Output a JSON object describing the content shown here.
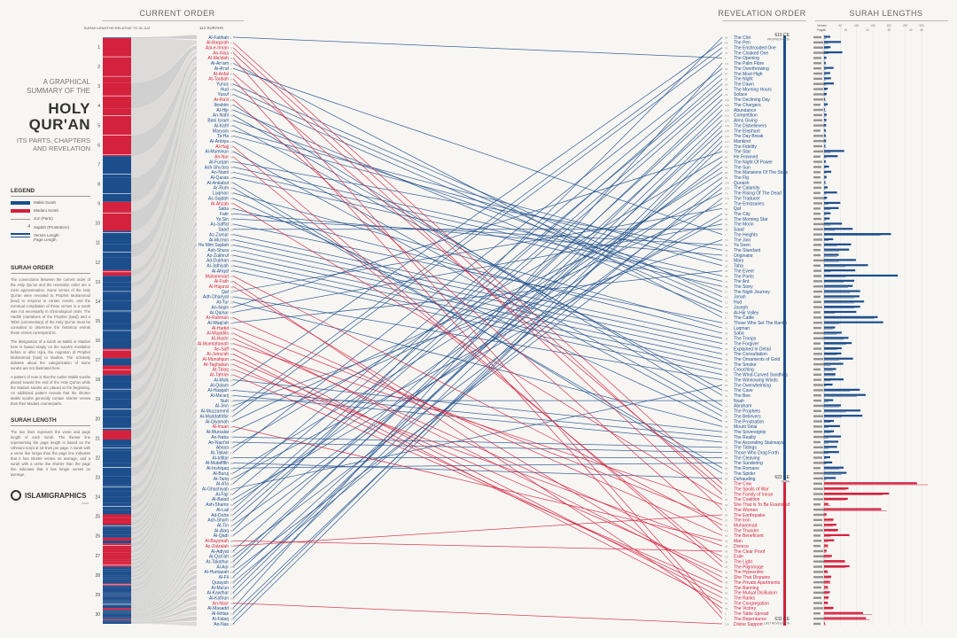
{
  "headers": {
    "current_order": "CURRENT ORDER",
    "revelation_order": "REVELATION ORDER",
    "surah_lengths": "SURAH LENGTHS",
    "bar_caption": "SURAH LENGTHS RELATIVE TO 30 JUZ",
    "surah_count": "114 SURAHS"
  },
  "title": {
    "line1": "A GRAPHICAL",
    "line2": "SUMMARY OF THE",
    "big1": "HOLY",
    "big2": "QUR'AN",
    "line3": "ITS PARTS, CHAPTERS",
    "line4": "AND REVELATION"
  },
  "legend": {
    "heading": "LEGEND",
    "items": [
      "Makki Surah",
      "Madani Surah",
      "Juz (Parts)",
      "Sajdah (Prostration)",
      "Verses Length",
      "Page Length"
    ]
  },
  "surah_order": {
    "heading": "SURAH ORDER",
    "p1": "The connections between the current order of the Holy Qur'an and the revelation order are a mere approximation. Some verses of the Holy Qur'an were revealed to Prophet Muhammad [saw] to respond to certain events, and the eventual compilation of these verses in a surah was not necessarily in chronological order. The Hadith (narratives of the Prophet [saw]) and a Tafsir (commentary) of the Holy Qur'an must be consulted to determine the historical events these verses correspond to.",
    "p2": "The designation of a surah as Makki or Madani here is based simply on the surah's revelation before or after Hijra, the migration of Prophet Muhammad [saw] to Madina. The scholarly debates about the categorization of some surahs are not illustrated here.",
    "p3": "A pattern of note is that the earlier Makki surahs placed toward the end of the Holy Qur'an while the Madani surahs are placed at the beginning. An additional pattern reveals that the shorter Makki surahs generally contain shorter verses than their Madani counterparts."
  },
  "surah_length": {
    "heading": "SURAH LENGTH",
    "p1": "The two lines represent the verse and page length of each surah. The thinner line representing the page length is based on the Uthmani script at 15 lines per page. A surah with a verse line longer than the page line indicates that it has shorter verses on average, and a surah with a verse line shorter than the page line indicates that it has longer verses on average."
  },
  "logo": {
    "name": "ISLAMIGRAPHICS",
    "sub": ".com"
  },
  "events": {
    "e1_date": "610 CE",
    "e1_label": "PROPHETHOOD",
    "e2_date": "622 CE",
    "e2_label": "HIJRA",
    "e3_date": "632 CE",
    "e3_label": "LAST REVELATION"
  },
  "length_axis": {
    "verses_label": "Verses",
    "pages_label": "Pages",
    "verse_ticks": [
      "50",
      "100",
      "150",
      "200",
      "250",
      "300"
    ],
    "page_ticks": [
      "0",
      "10",
      "20",
      "30",
      "40",
      "45"
    ]
  },
  "colors": {
    "makki": "#1d4e8c",
    "madani": "#d4213d",
    "juz_grey": "#c9c9c9",
    "bg": "#f7f6f3"
  },
  "juz_numbers": [
    "1",
    "2",
    "3",
    "4",
    "5",
    "6",
    "7",
    "8",
    "9",
    "10",
    "11",
    "12",
    "13",
    "14",
    "15",
    "16",
    "17",
    "18",
    "19",
    "20",
    "21",
    "22",
    "23",
    "24",
    "25",
    "26",
    "27",
    "28",
    "29",
    "30"
  ],
  "current_names": [
    "Al-Fatihah",
    "Al-Baqarah",
    "Aal-e-Imran",
    "An-Nisa",
    "Al-Ma'idah",
    "Al-An'am",
    "Al-A'raf",
    "Al-Anfal",
    "At-Taubah",
    "Yunus",
    "Hud",
    "Yusuf",
    "Ar-Ra'd",
    "Ibrahim",
    "Al-Hijr",
    "An-Nahl",
    "Bani Israel",
    "Al-Kahf",
    "Maryam",
    "Ta Ha",
    "Al-Anbiya",
    "Al-Hajj",
    "Al-Muminun",
    "An-Nur",
    "Al-Furqan",
    "Ash-Shu'ara",
    "An-Naml",
    "Al-Qasas",
    "Al-Ankabut",
    "Ar-Rum",
    "Luqman",
    "As-Sajdah",
    "Al-Ahzab",
    "Saba",
    "Fatir",
    "Ya Sin",
    "As-Saffat",
    "Saad",
    "Az-Zumar",
    "Al-Mu'min",
    "Ha Mim Sajdah",
    "Ash-Shura",
    "Az-Zukhruf",
    "Ad-Dukhan",
    "Al-Jathiyah",
    "Al-Ahqaf",
    "Muhammad",
    "Al-Fath",
    "Al-Hujurat",
    "Qaf",
    "Adh-Dhariyat",
    "At-Tur",
    "An-Najm",
    "Al-Qamar",
    "Ar-Rahman",
    "Al-Waqi'ah",
    "Al-Hadid",
    "Al-Mujadila",
    "Al-Hashr",
    "Al-Mumtahanah",
    "As-Saff",
    "Al-Jumu'ah",
    "Al-Munafiqun",
    "At-Taghabun",
    "At-Talaq",
    "At-Tahrim",
    "Al-Mulk",
    "Al-Qalam",
    "Al-Haqqah",
    "Al-Ma'arij",
    "Nuh",
    "Al-Jinn",
    "Al-Muzzammil",
    "Al-Muddaththir",
    "Al-Qiyamah",
    "Al-Insan",
    "Al-Mursalat",
    "An-Naba",
    "An-Nazi'at",
    "Abasa",
    "At-Takwir",
    "Al-Infitar",
    "Al-Mutaffifin",
    "Al-Inshiqaq",
    "Al-Buruj",
    "At-Tariq",
    "Al-A'la",
    "Al-Ghashiyah",
    "Al-Fajr",
    "Al-Balad",
    "Ash-Shams",
    "Al-Lail",
    "Ad-Duha",
    "Ash-Sharh",
    "At-Tin",
    "Al-Alaq",
    "Al-Qadr",
    "Al-Bayyinah",
    "Az-Zalzalah",
    "Al-Adiyat",
    "Al-Qari'ah",
    "At-Takathur",
    "Al-Asr",
    "Al-Humazah",
    "Al-Fil",
    "Quraysh",
    "Al-Ma'un",
    "Al-Kawthar",
    "Al-Kafirun",
    "An-Nasr",
    "Al-Masadd",
    "Al-Ikhlas",
    "Al-Falaq",
    "An-Nas"
  ],
  "current_madani": [
    2,
    3,
    4,
    5,
    8,
    9,
    13,
    22,
    24,
    33,
    47,
    48,
    49,
    55,
    57,
    58,
    59,
    60,
    61,
    62,
    63,
    64,
    65,
    66,
    76,
    98,
    99,
    110
  ],
  "revelation_names": [
    "The Clot",
    "The Pen",
    "The Enshrouded One",
    "The Cloaked One",
    "The Opening",
    "The Palm Fibre",
    "The Overthrowing",
    "The Most High",
    "The Night",
    "The Dawn",
    "The Morning Hours",
    "Solace",
    "The Declining Day",
    "The Chargers",
    "Abundance",
    "Competition",
    "Alms Giving",
    "The Disbelievers",
    "The Elephant",
    "The Day Break",
    "Mankind",
    "The Fidelity",
    "The Star",
    "He Frowned",
    "The Night Of Power",
    "The Sun",
    "The Mansions Of The Stars",
    "The Fig",
    "Quraish",
    "The Calamity",
    "The Rising Of The Dead",
    "The Traducer",
    "The Emissaries",
    "Qaf",
    "The City",
    "The Morning Star",
    "The Moon",
    "Saad",
    "The Heights",
    "The Jinn",
    "Ya Seen",
    "The Standard",
    "Originator",
    "Mary",
    "Taha",
    "The Event",
    "The Poets",
    "The Ant",
    "The Story",
    "The Night Journey",
    "Jonah",
    "Hud",
    "Joseph",
    "Al-Hijr Valley",
    "The Cattle",
    "Those Who Set The Ranks",
    "Luqman",
    "Saba",
    "The Troops",
    "The Forgiver",
    "Explained In Detail",
    "The Consultation",
    "The Ornaments of Gold",
    "The Smoke",
    "Crouching",
    "The Wind-Curved Sandhills",
    "The Winnowing Winds",
    "The Overwhelming",
    "The Cave",
    "The Bee",
    "Noah",
    "Abraham",
    "The Prophets",
    "The Believers",
    "The Prostration",
    "Mount Sinai",
    "The Sovereignty",
    "The Reality",
    "The Ascending Stairways",
    "The Tidings",
    "Those Who Drag Forth",
    "The Cleaving",
    "The Sundering",
    "The Romans",
    "The Spider",
    "Defrauding",
    "The Cow",
    "The Spoils of War",
    "The Family of Imran",
    "The Coalition",
    "She That Is To Be Examined",
    "The Women",
    "The Earthquake",
    "The Iron",
    "Muhammad",
    "The Thunder",
    "The Beneficent",
    "Man",
    "Divorce",
    "The Clear Proof",
    "Exile",
    "The Light",
    "The Pilgrimage",
    "The Hypocrites",
    "She That Disputes",
    "The Private Apartments",
    "The Banning",
    "The Mutual Disillusion",
    "The Ranks",
    "The Congregation",
    "The Victory",
    "The Table Spread",
    "The Repentance",
    "Divine Support"
  ],
  "revelation_to_current": [
    96,
    68,
    73,
    74,
    1,
    111,
    81,
    87,
    92,
    89,
    93,
    94,
    103,
    100,
    108,
    102,
    107,
    109,
    105,
    113,
    114,
    112,
    53,
    80,
    97,
    91,
    85,
    95,
    106,
    101,
    75,
    104,
    77,
    50,
    90,
    86,
    54,
    38,
    7,
    72,
    36,
    25,
    35,
    19,
    20,
    56,
    26,
    27,
    28,
    17,
    10,
    11,
    12,
    15,
    6,
    37,
    31,
    34,
    39,
    40,
    41,
    42,
    43,
    44,
    45,
    46,
    51,
    88,
    18,
    16,
    71,
    14,
    21,
    23,
    32,
    52,
    67,
    69,
    70,
    78,
    79,
    82,
    84,
    30,
    29,
    83,
    2,
    8,
    3,
    33,
    60,
    4,
    99,
    57,
    47,
    13,
    55,
    76,
    65,
    98,
    59,
    24,
    22,
    63,
    58,
    49,
    66,
    64,
    61,
    62,
    48,
    5,
    9,
    110
  ],
  "verses": [
    7,
    286,
    200,
    176,
    120,
    165,
    206,
    75,
    129,
    109,
    123,
    111,
    43,
    52,
    99,
    128,
    111,
    110,
    98,
    135,
    112,
    78,
    118,
    64,
    77,
    227,
    93,
    88,
    69,
    60,
    34,
    30,
    73,
    54,
    45,
    83,
    182,
    88,
    75,
    85,
    54,
    53,
    89,
    59,
    37,
    35,
    38,
    29,
    18,
    45,
    60,
    49,
    62,
    55,
    78,
    96,
    29,
    22,
    24,
    13,
    14,
    11,
    11,
    18,
    12,
    12,
    30,
    52,
    52,
    44,
    28,
    28,
    20,
    56,
    40,
    31,
    50,
    40,
    46,
    42,
    29,
    19,
    36,
    25,
    22,
    17,
    19,
    26,
    30,
    20,
    15,
    21,
    11,
    8,
    8,
    19,
    5,
    8,
    8,
    11,
    11,
    8,
    3,
    9,
    5,
    4,
    7,
    3,
    6,
    3,
    5,
    4,
    5,
    6
  ],
  "pages": [
    1,
    48,
    27,
    29,
    22,
    23,
    26,
    10,
    21,
    14,
    14,
    14,
    6,
    7,
    5,
    15,
    12,
    12,
    7,
    10,
    10,
    10,
    8,
    10,
    7,
    10,
    9,
    11,
    8,
    7,
    4,
    3,
    10,
    6,
    6,
    6,
    7,
    5,
    9,
    10,
    6,
    6,
    7,
    3,
    4,
    5,
    4,
    4,
    3,
    3,
    3,
    2,
    3,
    3,
    3,
    3,
    4,
    3,
    3,
    3,
    2,
    2,
    2,
    2,
    2,
    2,
    3,
    2,
    2,
    2,
    2,
    2,
    2,
    2,
    1,
    2,
    2,
    2,
    2,
    1,
    1,
    1,
    1,
    1,
    1,
    1,
    1,
    1,
    1,
    1,
    1,
    1,
    1,
    1,
    1,
    1,
    1,
    1,
    1,
    1,
    1,
    1,
    1,
    1,
    1,
    1,
    1,
    1,
    1,
    1,
    1,
    1,
    1,
    1
  ]
}
